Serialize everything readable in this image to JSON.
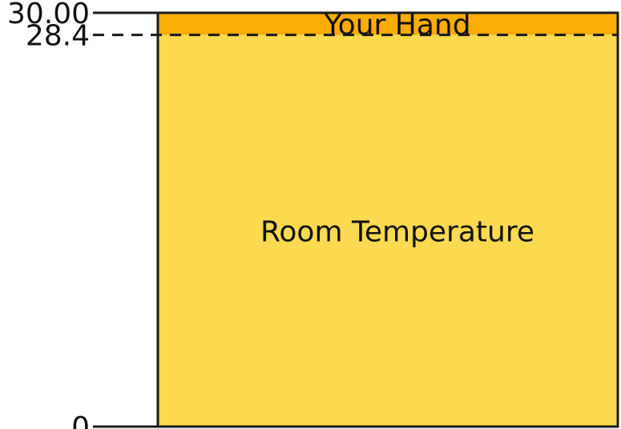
{
  "chart_data": {
    "type": "bar",
    "orientation": "vertical-stacked",
    "ylim": [
      0,
      30
    ],
    "ticks": [
      {
        "value": 0,
        "label": "0",
        "style": "solid"
      },
      {
        "value": 28.4,
        "label": "28.4",
        "style": "dashed"
      },
      {
        "value": 30,
        "label": "30.00",
        "style": "solid"
      }
    ],
    "segments": [
      {
        "label": "Room Temperature",
        "from": 0,
        "to": 28.4,
        "color": "#FDD94F"
      },
      {
        "label": "Your Hand",
        "from": 28.4,
        "to": 30,
        "color": "#FBAC05"
      }
    ],
    "colors": {
      "border": "#1a1a1a",
      "text": "#111111"
    }
  }
}
